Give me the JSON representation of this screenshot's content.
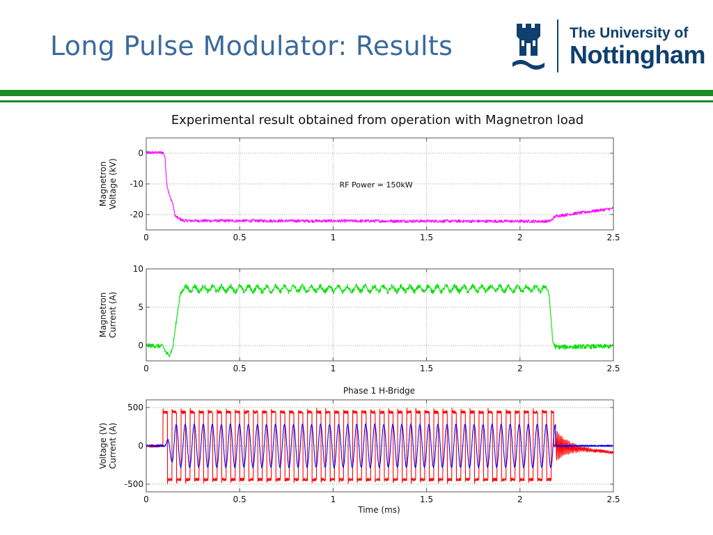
{
  "slide": {
    "title": "Long Pulse Modulator: Results",
    "subtitle": "Experimental result obtained from operation with Magnetron load"
  },
  "logo": {
    "line1": "The University of",
    "line2": "Nottingham",
    "color": "#0f3f6e"
  },
  "colors": {
    "title": "#3b6a9c",
    "band": "#1f8a25"
  },
  "chart_data": [
    {
      "type": "line",
      "title": "",
      "xlabel": "",
      "ylabel": [
        "Magnetron",
        "Voltage (kV)"
      ],
      "annotation": "RF Power = 150kW",
      "xlim": [
        0,
        2.5
      ],
      "ylim": [
        -25,
        5
      ],
      "xticks": [
        0,
        0.5,
        1,
        1.5,
        2,
        2.5
      ],
      "xtick_labels": [
        "0",
        "0.5",
        "1",
        "1.5",
        "2",
        "2.5"
      ],
      "yticks": [
        0,
        -10,
        -20
      ],
      "ytick_labels": [
        "0",
        "-10",
        "-20"
      ],
      "grid": true,
      "series": [
        {
          "color": "#ff00ff",
          "noise": 0.5,
          "points": [
            [
              0,
              0.2
            ],
            [
              0.09,
              0.2
            ],
            [
              0.1,
              -1
            ],
            [
              0.11,
              -10
            ],
            [
              0.125,
              -14
            ],
            [
              0.14,
              -16
            ],
            [
              0.155,
              -20.5
            ],
            [
              0.18,
              -21.5
            ],
            [
              0.2,
              -22
            ],
            [
              2.15,
              -22.2
            ],
            [
              2.165,
              -22
            ],
            [
              2.19,
              -20.5
            ],
            [
              2.5,
              -18
            ]
          ]
        }
      ]
    },
    {
      "type": "line",
      "title": "",
      "xlabel": "",
      "ylabel": [
        "Magnetron",
        "Current (A)"
      ],
      "xlim": [
        0,
        2.5
      ],
      "ylim": [
        -2,
        10
      ],
      "xticks": [
        0,
        0.5,
        1,
        1.5,
        2,
        2.5
      ],
      "xtick_labels": [
        "0",
        "0.5",
        "1",
        "1.5",
        "2",
        "2.5"
      ],
      "yticks": [
        0,
        5,
        10
      ],
      "ytick_labels": [
        "0",
        "5",
        "10"
      ],
      "grid": true,
      "series": [
        {
          "color": "#00e000",
          "noise": 0.3,
          "ripple": {
            "from": 0.2,
            "to": 2.15,
            "amplitude": 0.35,
            "period": 0.048
          },
          "points": [
            [
              0,
              0
            ],
            [
              0.09,
              -0.1
            ],
            [
              0.105,
              -0.9
            ],
            [
              0.12,
              -1.3
            ],
            [
              0.14,
              -0.5
            ],
            [
              0.16,
              3
            ],
            [
              0.18,
              6.5
            ],
            [
              0.2,
              7.4
            ],
            [
              2.15,
              7.4
            ],
            [
              2.16,
              5.5
            ],
            [
              2.175,
              0.5
            ],
            [
              2.19,
              -0.2
            ],
            [
              2.5,
              -0.1
            ]
          ]
        }
      ]
    },
    {
      "type": "line",
      "title": "Phase 1 H-Bridge",
      "xlabel": "Time (ms)",
      "ylabel": [
        "Voltage (V)",
        "Current (A)"
      ],
      "xlim": [
        0,
        2.5
      ],
      "ylim": [
        -600,
        600
      ],
      "xticks": [
        0,
        0.5,
        1,
        1.5,
        2,
        2.5
      ],
      "xtick_labels": [
        "0",
        "0.5",
        "1",
        "1.5",
        "2",
        "2.5"
      ],
      "yticks": [
        500,
        0,
        -500
      ],
      "ytick_labels": [
        "500",
        "0",
        "-500"
      ],
      "grid": true,
      "series": [
        {
          "name": "Voltage",
          "color": "#ff0000",
          "pattern": "square",
          "start": 0.09,
          "end": 2.18,
          "period": 0.0483,
          "amplitude": 440,
          "noise": 18,
          "tail": {
            "from": 2.19,
            "to": 2.5,
            "start_amplitude": 200,
            "decay": 0.07,
            "drift_end": -90,
            "period": 0.008
          }
        },
        {
          "name": "Current",
          "color": "#0000ff",
          "pattern": "sine",
          "start": 0.1,
          "end": 2.19,
          "period": 0.0483,
          "amplitude": 280,
          "noise": 10
        }
      ]
    }
  ]
}
